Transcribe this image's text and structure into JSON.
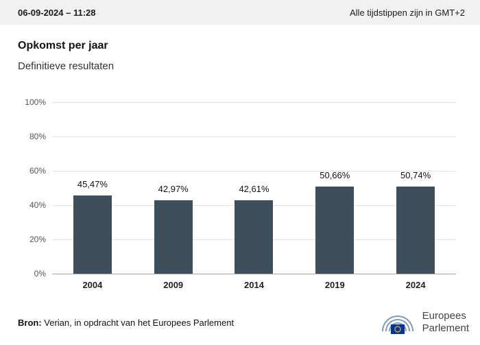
{
  "topbar": {
    "datetime": "06-09-2024 – 11:28",
    "timezone_note": "Alle tijdstippen zijn in GMT+2"
  },
  "header": {
    "title": "Opkomst per jaar",
    "subtitle": "Definitieve resultaten"
  },
  "chart_data": {
    "type": "bar",
    "title": "Opkomst per jaar",
    "subtitle": "Definitieve resultaten",
    "categories": [
      "2004",
      "2009",
      "2014",
      "2019",
      "2024"
    ],
    "values": [
      45.47,
      42.97,
      42.61,
      50.66,
      50.74
    ],
    "value_labels": [
      "45,47%",
      "42,97%",
      "42,61%",
      "50,66%",
      "50,74%"
    ],
    "ylim": [
      0,
      100
    ],
    "yticks": [
      0,
      20,
      40,
      60,
      80,
      100
    ],
    "ytick_suffix": "%",
    "bar_color": "#3e4f5b",
    "grid": true,
    "legend": "none"
  },
  "footer": {
    "source_label": "Bron:",
    "source_text": " Verian, in opdracht van het Europees Parlement",
    "logo_line1": "Europees",
    "logo_line2": "Parlement"
  },
  "colors": {
    "bar": "#3e4f5b",
    "topbar_bg": "#f1f1f1",
    "flag_blue": "#003399",
    "flag_stars": "#ffcc00",
    "hemicycle": "#7e9cb5"
  }
}
